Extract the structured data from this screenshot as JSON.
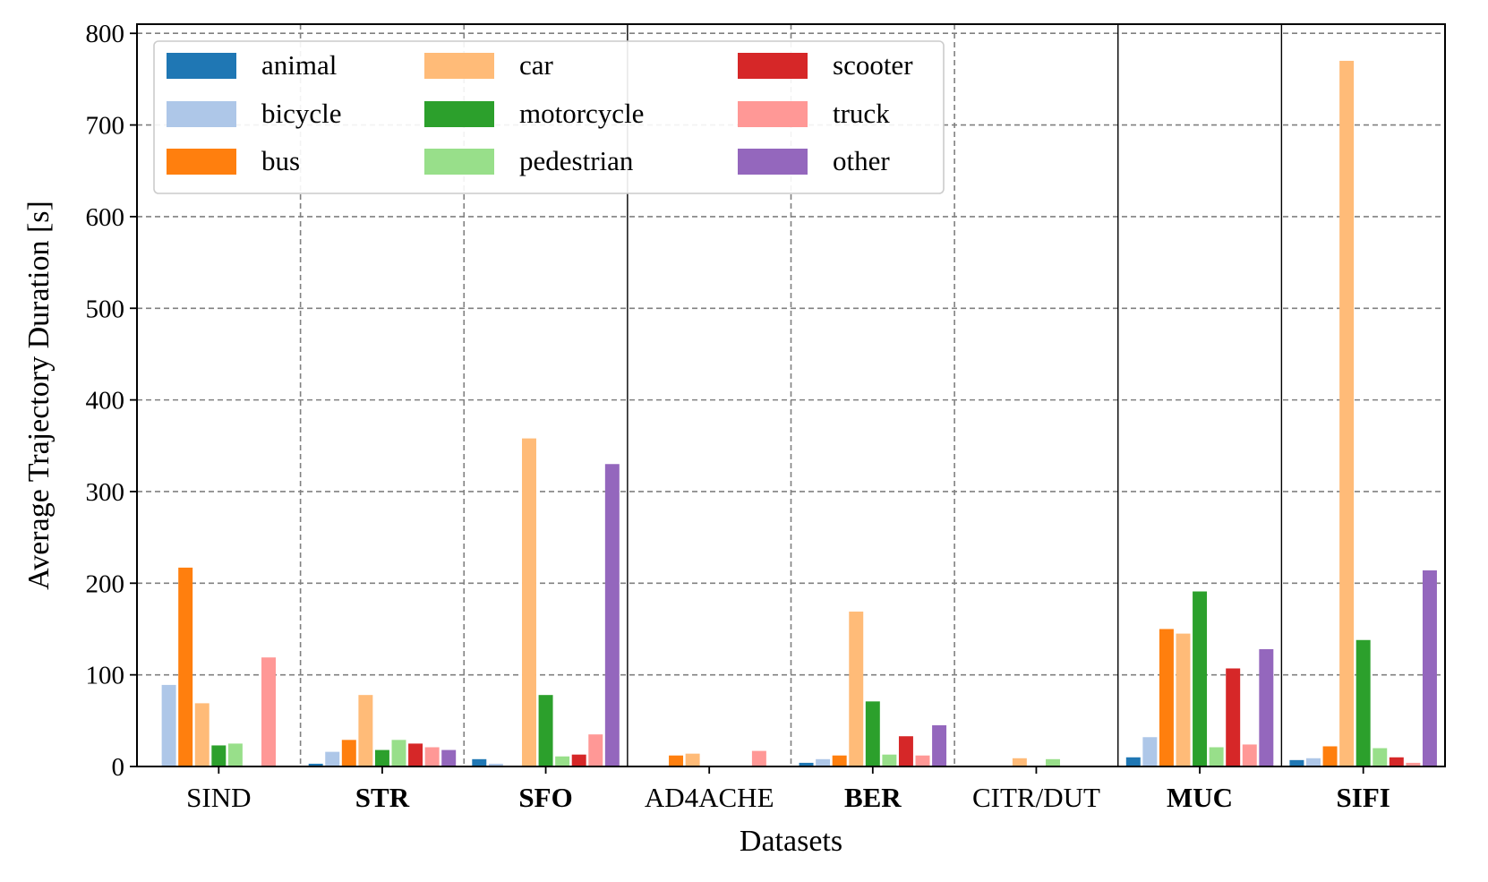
{
  "chart_data": {
    "type": "bar",
    "title": "",
    "xlabel": "Datasets",
    "ylabel": "Average Trajectory Duration [s]",
    "ylim": [
      0,
      810
    ],
    "yticks": [
      0,
      100,
      200,
      300,
      400,
      500,
      600,
      700,
      800
    ],
    "categories": [
      "SIND",
      "STR",
      "SFO",
      "AD4ACHE",
      "BER",
      "CITR/DUT",
      "MUC",
      "SIFI"
    ],
    "bold_categories": [
      "STR",
      "SFO",
      "BER",
      "MUC",
      "SIFI"
    ],
    "grid": true,
    "legend_position": "top-left",
    "series": [
      {
        "name": "animal",
        "color": "#1f77b4",
        "values": [
          0,
          3,
          8,
          0,
          4,
          0,
          10,
          7
        ]
      },
      {
        "name": "bicycle",
        "color": "#aec7e8",
        "values": [
          89,
          16,
          3,
          0,
          8,
          0,
          32,
          9
        ]
      },
      {
        "name": "bus",
        "color": "#ff7f0e",
        "values": [
          217,
          29,
          0,
          12,
          12,
          0,
          150,
          22
        ]
      },
      {
        "name": "car",
        "color": "#ffbb78",
        "values": [
          69,
          78,
          358,
          14,
          169,
          9,
          145,
          770
        ]
      },
      {
        "name": "motorcycle",
        "color": "#2ca02c",
        "values": [
          23,
          18,
          78,
          0,
          71,
          0,
          191,
          138
        ]
      },
      {
        "name": "pedestrian",
        "color": "#98df8a",
        "values": [
          25,
          29,
          11,
          0,
          13,
          8,
          21,
          20
        ]
      },
      {
        "name": "scooter",
        "color": "#d62728",
        "values": [
          0,
          25,
          13,
          0,
          33,
          0,
          107,
          10
        ]
      },
      {
        "name": "truck",
        "color": "#ff9896",
        "values": [
          119,
          21,
          35,
          17,
          12,
          0,
          24,
          4
        ]
      },
      {
        "name": "other",
        "color": "#9467bd",
        "values": [
          0,
          18,
          330,
          0,
          45,
          0,
          128,
          214
        ]
      }
    ]
  }
}
